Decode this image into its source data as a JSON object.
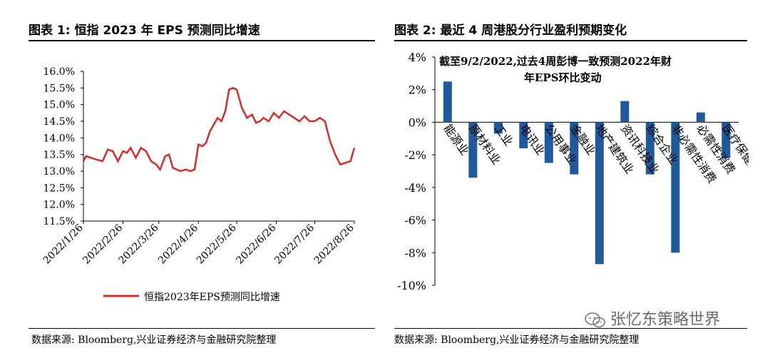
{
  "left_panel": {
    "title": "图表 1:  恒指 2023 年 EPS 预测同比增速",
    "source": "数据来源:  Bloomberg,兴业证券经济与金融研究院整理"
  },
  "right_panel": {
    "title": "图表 2:  最近 4 周港股分行业盈利预期变化",
    "source": "数据来源:  Bloomberg,兴业证券经济与金融研究院整理"
  },
  "watermark": {
    "text": "张忆东策略世界",
    "icon": "wechat-icon"
  },
  "colors": {
    "line": "#d92b2b",
    "bar": "#1f5a9c",
    "axis": "#000000"
  },
  "chart_data": [
    {
      "type": "line",
      "legend_position": "bottom",
      "grid": false,
      "ylim": [
        11.5,
        16.0
      ],
      "yticks": [
        "16.0%",
        "15.5%",
        "15.0%",
        "14.5%",
        "14.0%",
        "13.5%",
        "13.0%",
        "12.5%",
        "12.0%",
        "11.5%"
      ],
      "ytick_values": [
        16.0,
        15.5,
        15.0,
        14.5,
        14.0,
        13.5,
        13.0,
        12.5,
        12.0,
        11.5
      ],
      "xticks": [
        "2022/1/26",
        "2022/2/26",
        "2022/3/26",
        "2022/4/26",
        "2022/5/26",
        "2022/6/26",
        "2022/7/26",
        "2022/8/26"
      ],
      "series": [
        {
          "name": "恒指2023年EPS预测同比增速",
          "x": [
            "2022/1/26",
            "2022/1/28",
            "2022/2/1",
            "2022/2/5",
            "2022/2/10",
            "2022/2/14",
            "2022/2/18",
            "2022/2/22",
            "2022/2/26",
            "2022/3/1",
            "2022/3/4",
            "2022/3/8",
            "2022/3/12",
            "2022/3/16",
            "2022/3/20",
            "2022/3/24",
            "2022/3/27",
            "2022/3/31",
            "2022/4/3",
            "2022/4/6",
            "2022/4/9",
            "2022/4/12",
            "2022/4/16",
            "2022/4/20",
            "2022/4/23",
            "2022/4/26",
            "2022/4/29",
            "2022/5/2",
            "2022/5/5",
            "2022/5/8",
            "2022/5/11",
            "2022/5/14",
            "2022/5/17",
            "2022/5/20",
            "2022/5/23",
            "2022/5/26",
            "2022/5/30",
            "2022/6/3",
            "2022/6/7",
            "2022/6/10",
            "2022/6/13",
            "2022/6/16",
            "2022/6/20",
            "2022/6/24",
            "2022/6/28",
            "2022/7/2",
            "2022/7/6",
            "2022/7/10",
            "2022/7/14",
            "2022/7/18",
            "2022/7/22",
            "2022/7/26",
            "2022/7/30",
            "2022/8/3",
            "2022/8/7",
            "2022/8/11",
            "2022/8/15",
            "2022/8/19",
            "2022/8/23",
            "2022/8/26"
          ],
          "values": [
            13.3,
            13.45,
            13.4,
            13.35,
            13.3,
            13.65,
            13.6,
            13.3,
            13.6,
            13.55,
            13.7,
            13.4,
            13.7,
            13.6,
            13.3,
            13.2,
            13.05,
            13.45,
            13.5,
            13.1,
            13.05,
            13.0,
            13.05,
            13.0,
            13.05,
            13.8,
            13.75,
            13.85,
            14.2,
            14.4,
            14.6,
            14.5,
            14.8,
            15.45,
            15.5,
            15.45,
            14.9,
            14.6,
            14.7,
            14.45,
            14.5,
            14.6,
            14.5,
            14.75,
            14.6,
            14.8,
            14.7,
            14.6,
            14.5,
            14.65,
            14.5,
            14.5,
            14.6,
            14.5,
            13.9,
            13.5,
            13.2,
            13.25,
            13.3,
            13.7
          ]
        }
      ]
    },
    {
      "type": "bar",
      "annotation": [
        "截至9/2/2022,过去4周彭博一致预测2022年财",
        "年EPS环比变动"
      ],
      "grid": false,
      "ylim": [
        -10,
        4
      ],
      "yticks": [
        "4%",
        "2%",
        "0%",
        "-2%",
        "-4%",
        "-6%",
        "-8%",
        "-10%"
      ],
      "ytick_values": [
        4,
        2,
        0,
        -2,
        -4,
        -6,
        -8,
        -10
      ],
      "categories": [
        "能源业",
        "原材料业",
        "工业",
        "电讯业",
        "公用事业",
        "金融业",
        "地产建筑业",
        "资讯科技业",
        "综合企业",
        "非必需性消费",
        "必需性消费",
        "医疗保健业"
      ],
      "values": [
        2.5,
        -3.4,
        -0.7,
        -1.6,
        -2.5,
        -3.2,
        -8.7,
        1.3,
        -3.2,
        -8.0,
        0.6,
        -2.2
      ]
    }
  ]
}
